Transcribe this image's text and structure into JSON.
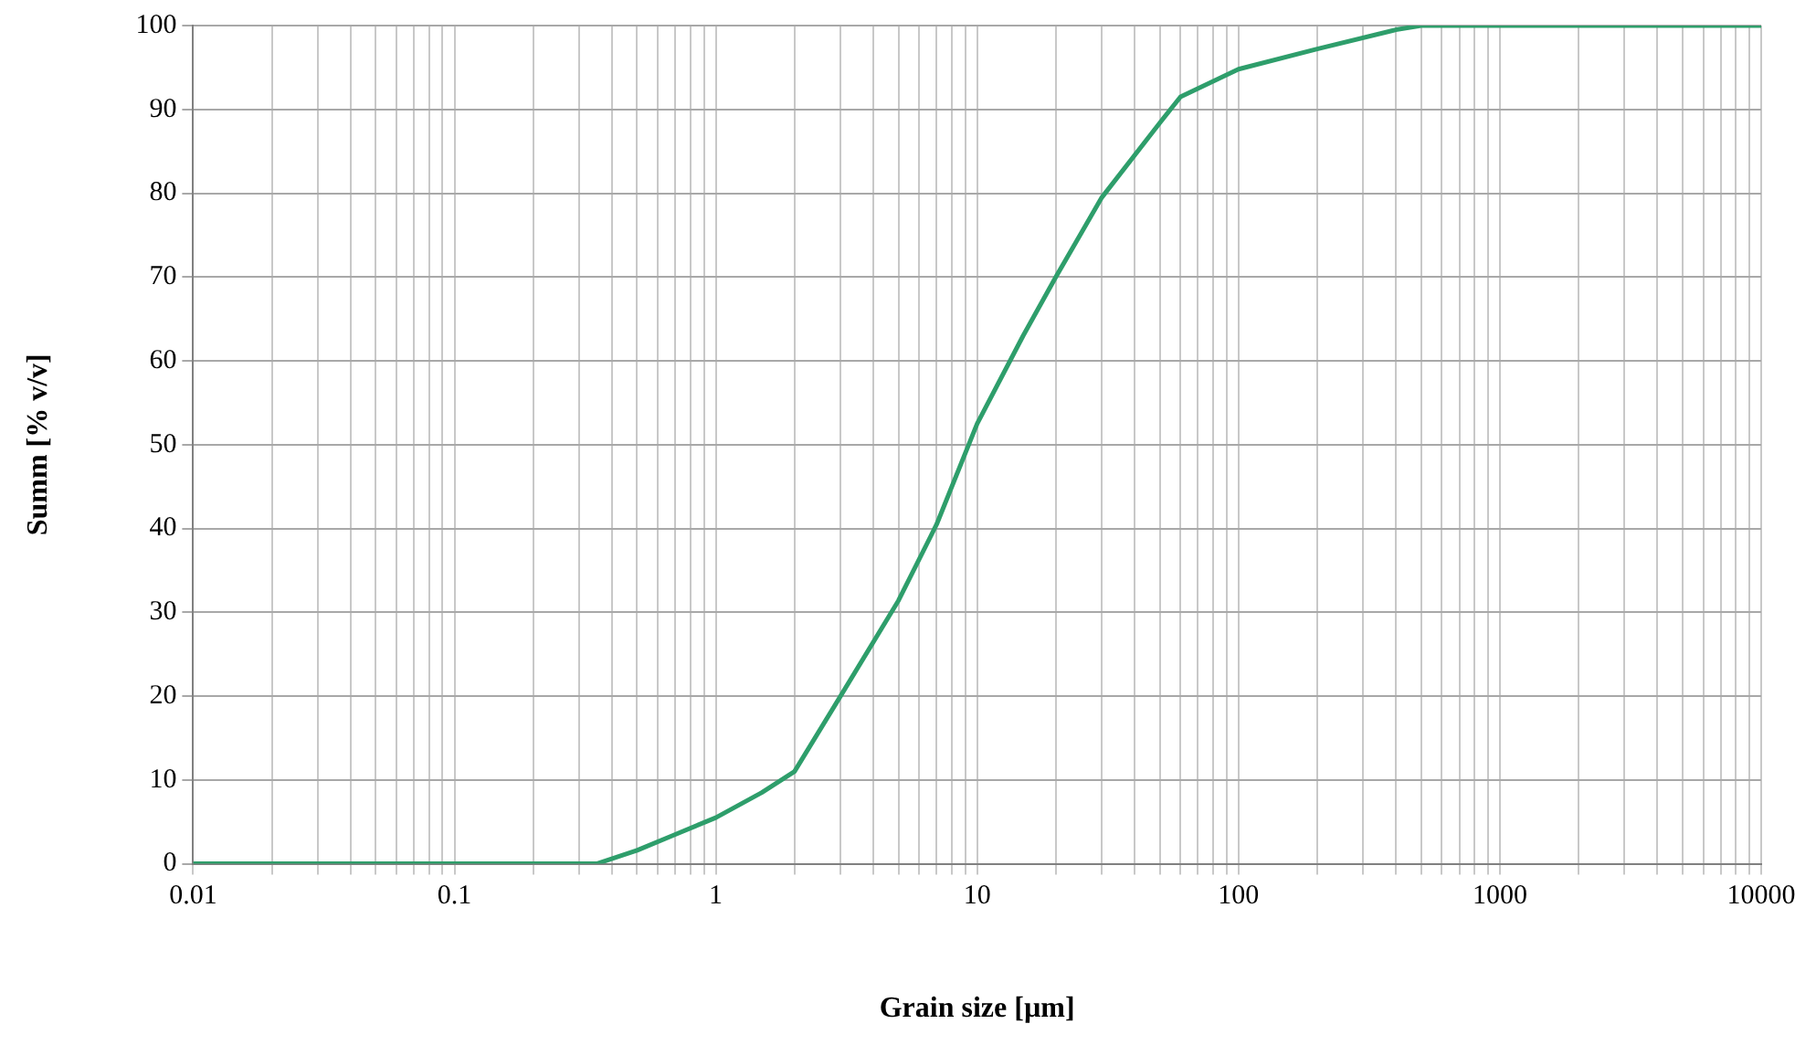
{
  "chart_data": {
    "type": "line",
    "xlabel": "Grain size [µm]",
    "ylabel": "Summ [% v/v]",
    "log": "x",
    "grid": true,
    "legend": false,
    "marker": "none",
    "line_style": "solid",
    "x": [
      0.01,
      0.1,
      0.3,
      0.35,
      0.5,
      0.7,
      1,
      1.5,
      2,
      3,
      5,
      7,
      10,
      15,
      20,
      30,
      50,
      60,
      100,
      200,
      400,
      500,
      1000,
      10000
    ],
    "series": [
      {
        "color": "#2e9e6b",
        "values": [
          0,
          0,
          0,
          0,
          1.6,
          3.5,
          5.5,
          8.5,
          11,
          20,
          31.4,
          40.5,
          52.5,
          63,
          70,
          79.5,
          88.4,
          91.5,
          94.8,
          97.2,
          99.5,
          100,
          100,
          100
        ]
      }
    ],
    "xlim": [
      0.01,
      10000
    ],
    "ylim": [
      0,
      100
    ],
    "yticks": [
      0,
      10,
      20,
      30,
      40,
      50,
      60,
      70,
      80,
      90,
      100
    ],
    "xticks": [
      0.01,
      {
        "value": 0.02,
        "label": null
      },
      {
        "value": 0.03,
        "label": null
      },
      {
        "value": 0.04,
        "label": null
      },
      {
        "value": 0.05,
        "label": null
      },
      {
        "value": 0.06,
        "label": null
      },
      {
        "value": 0.07,
        "label": null
      },
      {
        "value": 0.08,
        "label": null
      },
      {
        "value": 0.09,
        "label": null
      },
      0.1,
      {
        "value": 0.2,
        "label": null
      },
      {
        "value": 0.3,
        "label": null
      },
      {
        "value": 0.4,
        "label": null
      },
      {
        "value": 0.5,
        "label": null
      },
      {
        "value": 0.6,
        "label": null
      },
      {
        "value": 0.7,
        "label": null
      },
      {
        "value": 0.8,
        "label": null
      },
      {
        "value": 0.9,
        "label": null
      },
      1,
      {
        "value": 2,
        "label": null
      },
      {
        "value": 3,
        "label": null
      },
      {
        "value": 4,
        "label": null
      },
      {
        "value": 5,
        "label": null
      },
      {
        "value": 6,
        "label": null
      },
      {
        "value": 7,
        "label": null
      },
      {
        "value": 8,
        "label": null
      },
      {
        "value": 9,
        "label": null
      },
      10,
      {
        "value": 20,
        "label": null
      },
      {
        "value": 30,
        "label": null
      },
      {
        "value": 40,
        "label": null
      },
      {
        "value": 50,
        "label": null
      },
      {
        "value": 60,
        "label": null
      },
      {
        "value": 70,
        "label": null
      },
      {
        "value": 80,
        "label": null
      },
      {
        "value": 90,
        "label": null
      },
      100,
      {
        "value": 200,
        "label": null
      },
      {
        "value": 300,
        "label": null
      },
      {
        "value": 400,
        "label": null
      },
      {
        "value": 500,
        "label": null
      },
      {
        "value": 600,
        "label": null
      },
      {
        "value": 700,
        "label": null
      },
      {
        "value": 800,
        "label": null
      },
      {
        "value": 900,
        "label": null
      },
      1000,
      {
        "value": 2000,
        "label": null
      },
      {
        "value": 3000,
        "label": null
      },
      {
        "value": 4000,
        "label": null
      },
      {
        "value": 5000,
        "label": null
      },
      {
        "value": 6000,
        "label": null
      },
      {
        "value": 7000,
        "label": null
      },
      {
        "value": 8000,
        "label": null
      },
      {
        "value": 9000,
        "label": null
      },
      10000
    ]
  }
}
